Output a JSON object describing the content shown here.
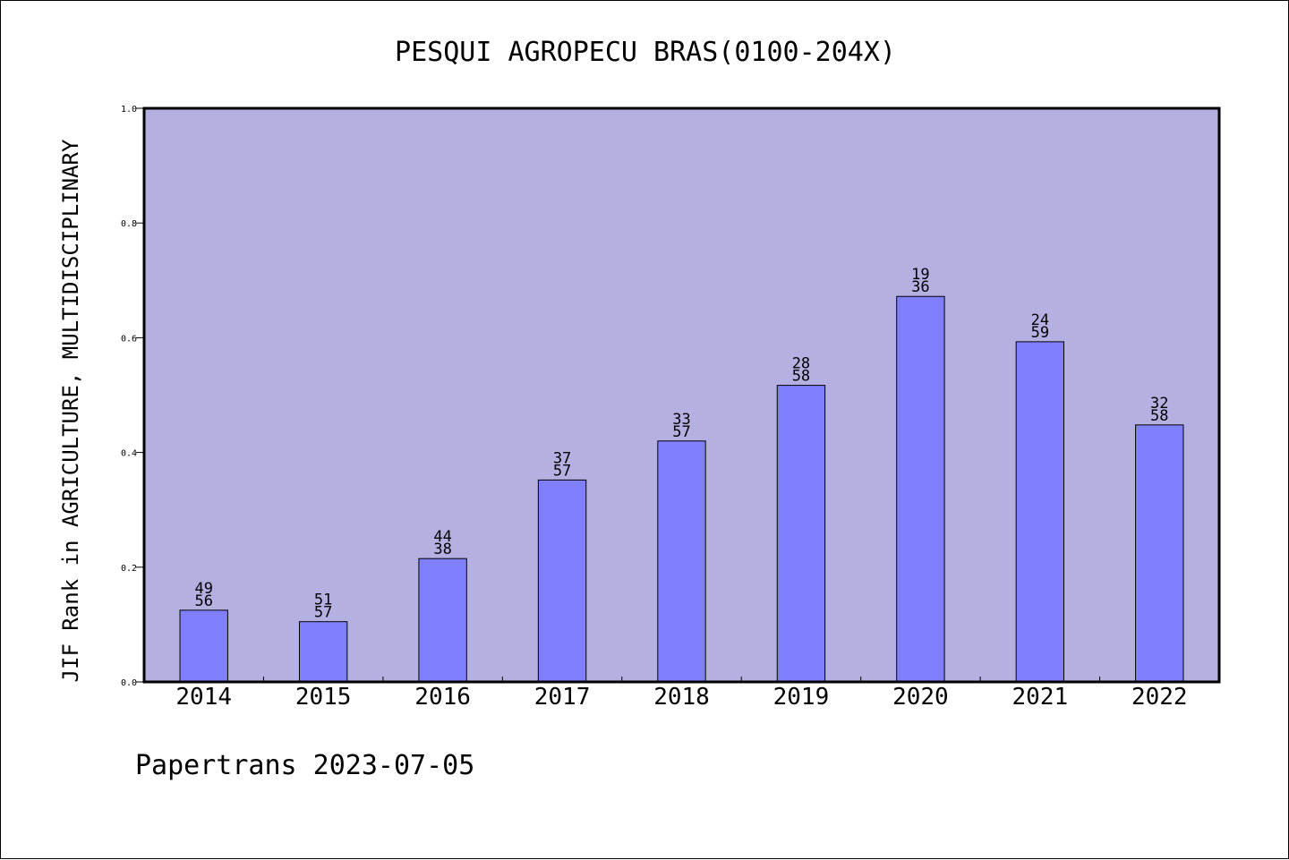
{
  "chart_data": {
    "type": "bar",
    "title": "PESQUI AGROPECU BRAS(0100-204X)",
    "ylabel": "JIF Rank in AGRICULTURE, MULTIDISCIPLINARY",
    "xlabel": "",
    "footer": "Papertrans 2023-07-05",
    "categories": [
      "2014",
      "2015",
      "2016",
      "2017",
      "2018",
      "2019",
      "2020",
      "2021",
      "2022"
    ],
    "values": [
      0.125,
      0.105,
      0.215,
      0.352,
      0.42,
      0.517,
      0.672,
      0.593,
      0.448
    ],
    "labels_top": [
      "49",
      "51",
      "44",
      "37",
      "33",
      "28",
      "19",
      "24",
      "32"
    ],
    "labels_bottom": [
      "56",
      "57",
      "38",
      "57",
      "57",
      "58",
      "36",
      "59",
      "58"
    ],
    "ylim": [
      0.0,
      1.0
    ],
    "yticks": [
      "0.0",
      "0.2",
      "0.4",
      "0.6",
      "0.8",
      "1.0"
    ],
    "grid": false,
    "colors": {
      "plot_background": "#b5b0e2",
      "bar_fill": "#8080ff",
      "bar_stroke": "#000000"
    }
  }
}
